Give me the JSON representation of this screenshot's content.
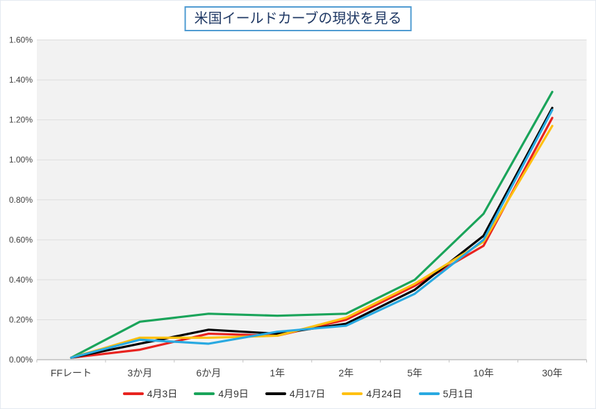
{
  "chart": {
    "title": "米国イールドカーブの現状を見る",
    "title_text_color": "#1f3864",
    "title_border_color": "#4f9bd2"
  },
  "chart_data": {
    "type": "line",
    "title": "米国イールドカーブの現状を見る",
    "categories": [
      "FFレート",
      "3か月",
      "6か月",
      "1年",
      "2年",
      "5年",
      "10年",
      "30年"
    ],
    "series": [
      {
        "name": "4月3日",
        "color": "#e8231f",
        "values": [
          0.01,
          0.05,
          0.13,
          0.12,
          0.2,
          0.37,
          0.57,
          1.21
        ]
      },
      {
        "name": "4月9日",
        "color": "#1aa45a",
        "values": [
          0.01,
          0.19,
          0.23,
          0.22,
          0.23,
          0.4,
          0.73,
          1.34
        ]
      },
      {
        "name": "4月17日",
        "color": "#000000",
        "values": [
          0.01,
          0.08,
          0.15,
          0.13,
          0.18,
          0.35,
          0.62,
          1.26
        ]
      },
      {
        "name": "4月24日",
        "color": "#ffc010",
        "values": [
          0.01,
          0.11,
          0.11,
          0.12,
          0.21,
          0.38,
          0.59,
          1.17
        ]
      },
      {
        "name": "5月1日",
        "color": "#29a9e1",
        "values": [
          0.01,
          0.1,
          0.08,
          0.14,
          0.17,
          0.33,
          0.6,
          1.25
        ]
      }
    ],
    "ylim": [
      0,
      1.6
    ],
    "y_tick_step": 0.2,
    "y_ticks": [
      "0.00%",
      "0.20%",
      "0.40%",
      "0.60%",
      "0.80%",
      "1.00%",
      "1.20%",
      "1.40%",
      "1.60%"
    ],
    "grid": true,
    "legend_position": "bottom",
    "plot_bg": "#f2f2f2",
    "gridline_color": "#dddddd",
    "axis_line_color": "#c0c0c0",
    "tick_label_color": "#3f3f3f",
    "x_label_font_px": 14,
    "y_label_font_px": 12
  }
}
